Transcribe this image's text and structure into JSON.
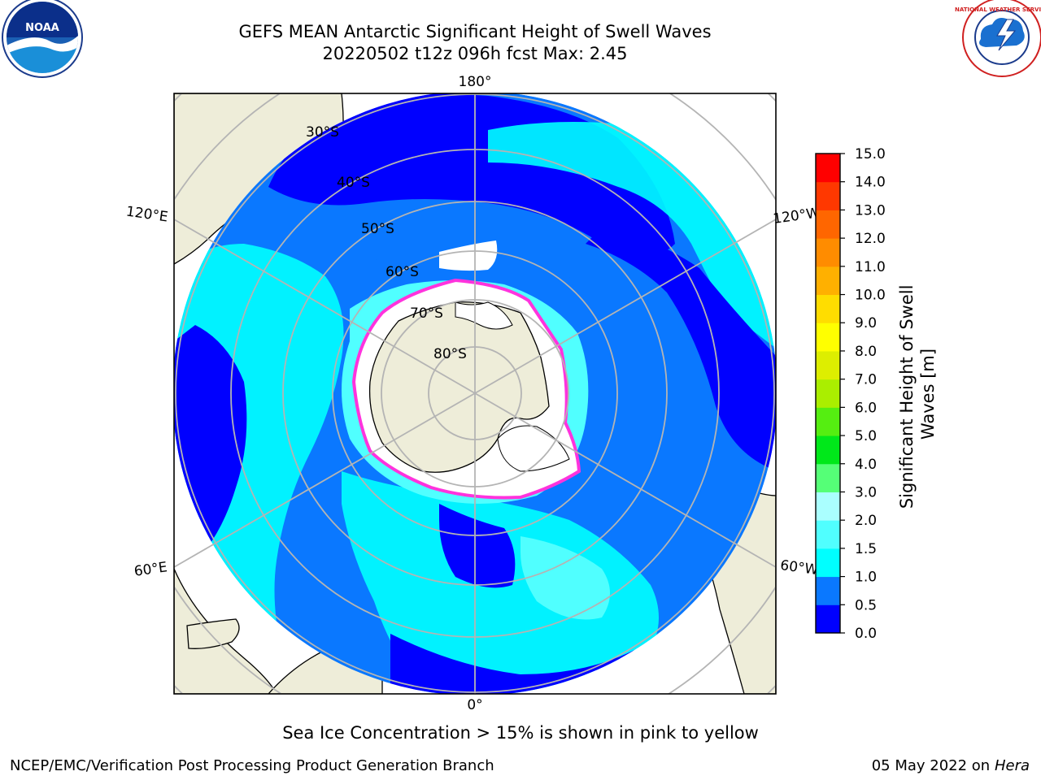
{
  "header": {
    "title_line1": "GEFS MEAN Antarctic Significant Height of Swell Waves",
    "title_line2": "20220502 t12z 096h fcst   Max: 2.45"
  },
  "logos": {
    "noaa_text": "NOAA",
    "nws_text": "NATIONAL WEATHER SERVICE"
  },
  "map": {
    "projection": "south-polar-stereographic",
    "longitude_labels": [
      "180°",
      "120°E",
      "120°W",
      "60°E",
      "60°W",
      "0°"
    ],
    "latitude_labels": [
      "30°S",
      "40°S",
      "50°S",
      "60°S",
      "70°S",
      "80°S"
    ],
    "colors": {
      "land": "#eeedd9",
      "ice_shelf": "#ffffff",
      "ice_edge": "#ff33dd",
      "grid": "#b4b4b4"
    }
  },
  "colorbar": {
    "label": "Significant Height of Swell Waves [m]",
    "ticks": [
      "0.0",
      "0.5",
      "1.0",
      "1.5",
      "2.0",
      "3.0",
      "4.0",
      "5.0",
      "6.0",
      "7.0",
      "8.0",
      "9.0",
      "10.0",
      "11.0",
      "12.0",
      "13.0",
      "14.0",
      "15.0"
    ],
    "colors": [
      "#0000ff",
      "#0a78ff",
      "#00ffff",
      "#50ffff",
      "#aaffff",
      "#55ff77",
      "#00e81a",
      "#55ee11",
      "#aaee00",
      "#ddee00",
      "#ffff00",
      "#ffdd00",
      "#ffb000",
      "#ff8c00",
      "#ff6600",
      "#ff3800",
      "#ff0000"
    ]
  },
  "footer": {
    "note": "Sea Ice Concentration > 15% is shown in pink to yellow",
    "credit": "NCEP/EMC/Verification Post Processing Product Generation Branch",
    "date": "05 May 2022 on",
    "host": "Hera"
  }
}
